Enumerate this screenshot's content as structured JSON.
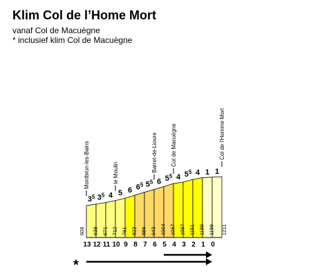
{
  "title": "Klim Col de l’Home Mort",
  "subtitle": "vanaf Col de Macuègne",
  "note": "* inclusief klim Col de Macuègne",
  "star": "*",
  "chart_data": {
    "type": "area",
    "km_labels": [
      "13",
      "12",
      "11",
      "10",
      "9",
      "8",
      "7",
      "6",
      "5",
      "4",
      "3",
      "2",
      "1",
      "0"
    ],
    "altitudes": [
      "606",
      "638",
      "671",
      "712",
      "761",
      "822",
      "886",
      "943",
      "1004",
      "1067",
      "1097",
      "1151",
      "1189",
      "1199",
      "1211"
    ],
    "altitude_values": [
      606,
      638,
      671,
      712,
      761,
      822,
      886,
      943,
      1004,
      1067,
      1097,
      1151,
      1189,
      1199,
      1211
    ],
    "gradients": [
      {
        "main": "3",
        "sup": "5"
      },
      {
        "main": "3",
        "sup": "5"
      },
      {
        "main": "4",
        "sup": ""
      },
      {
        "main": "5",
        "sup": ""
      },
      {
        "main": "6",
        "sup": ""
      },
      {
        "main": "6",
        "sup": "5"
      },
      {
        "main": "5",
        "sup": "5"
      },
      {
        "main": "6",
        "sup": ""
      },
      {
        "main": "5",
        "sup": "5"
      },
      {
        "main": "4",
        "sup": ""
      },
      {
        "main": "5",
        "sup": "5"
      },
      {
        "main": "4",
        "sup": ""
      },
      {
        "main": "1",
        "sup": ""
      },
      {
        "main": "1",
        "sup": ""
      }
    ],
    "segment_colors": [
      "#ffff80",
      "#ffff80",
      "#ffff80",
      "#ffff80",
      "#ffff00",
      "#ffd966",
      "#ffd966",
      "#ffd966",
      "#ffd966",
      "#ffff00",
      "#ffff00",
      "#ffff00",
      "#ffffc8",
      "#ffffc8"
    ],
    "places": [
      {
        "name": "Montbrun-les-Bains",
        "km_index": 0
      },
      {
        "name": "le Moulin",
        "km_index": 3
      },
      {
        "name": "Barret-de-Lioure",
        "km_index": 7
      },
      {
        "name": "Col de Macuègne",
        "km_index": 9
      },
      {
        "name": "Col de l'Homme Mort",
        "km_index": 14
      }
    ],
    "arrows": [
      {
        "from_km": 5,
        "to_km": 0
      },
      {
        "from_km": 13,
        "to_km": 0
      }
    ]
  }
}
